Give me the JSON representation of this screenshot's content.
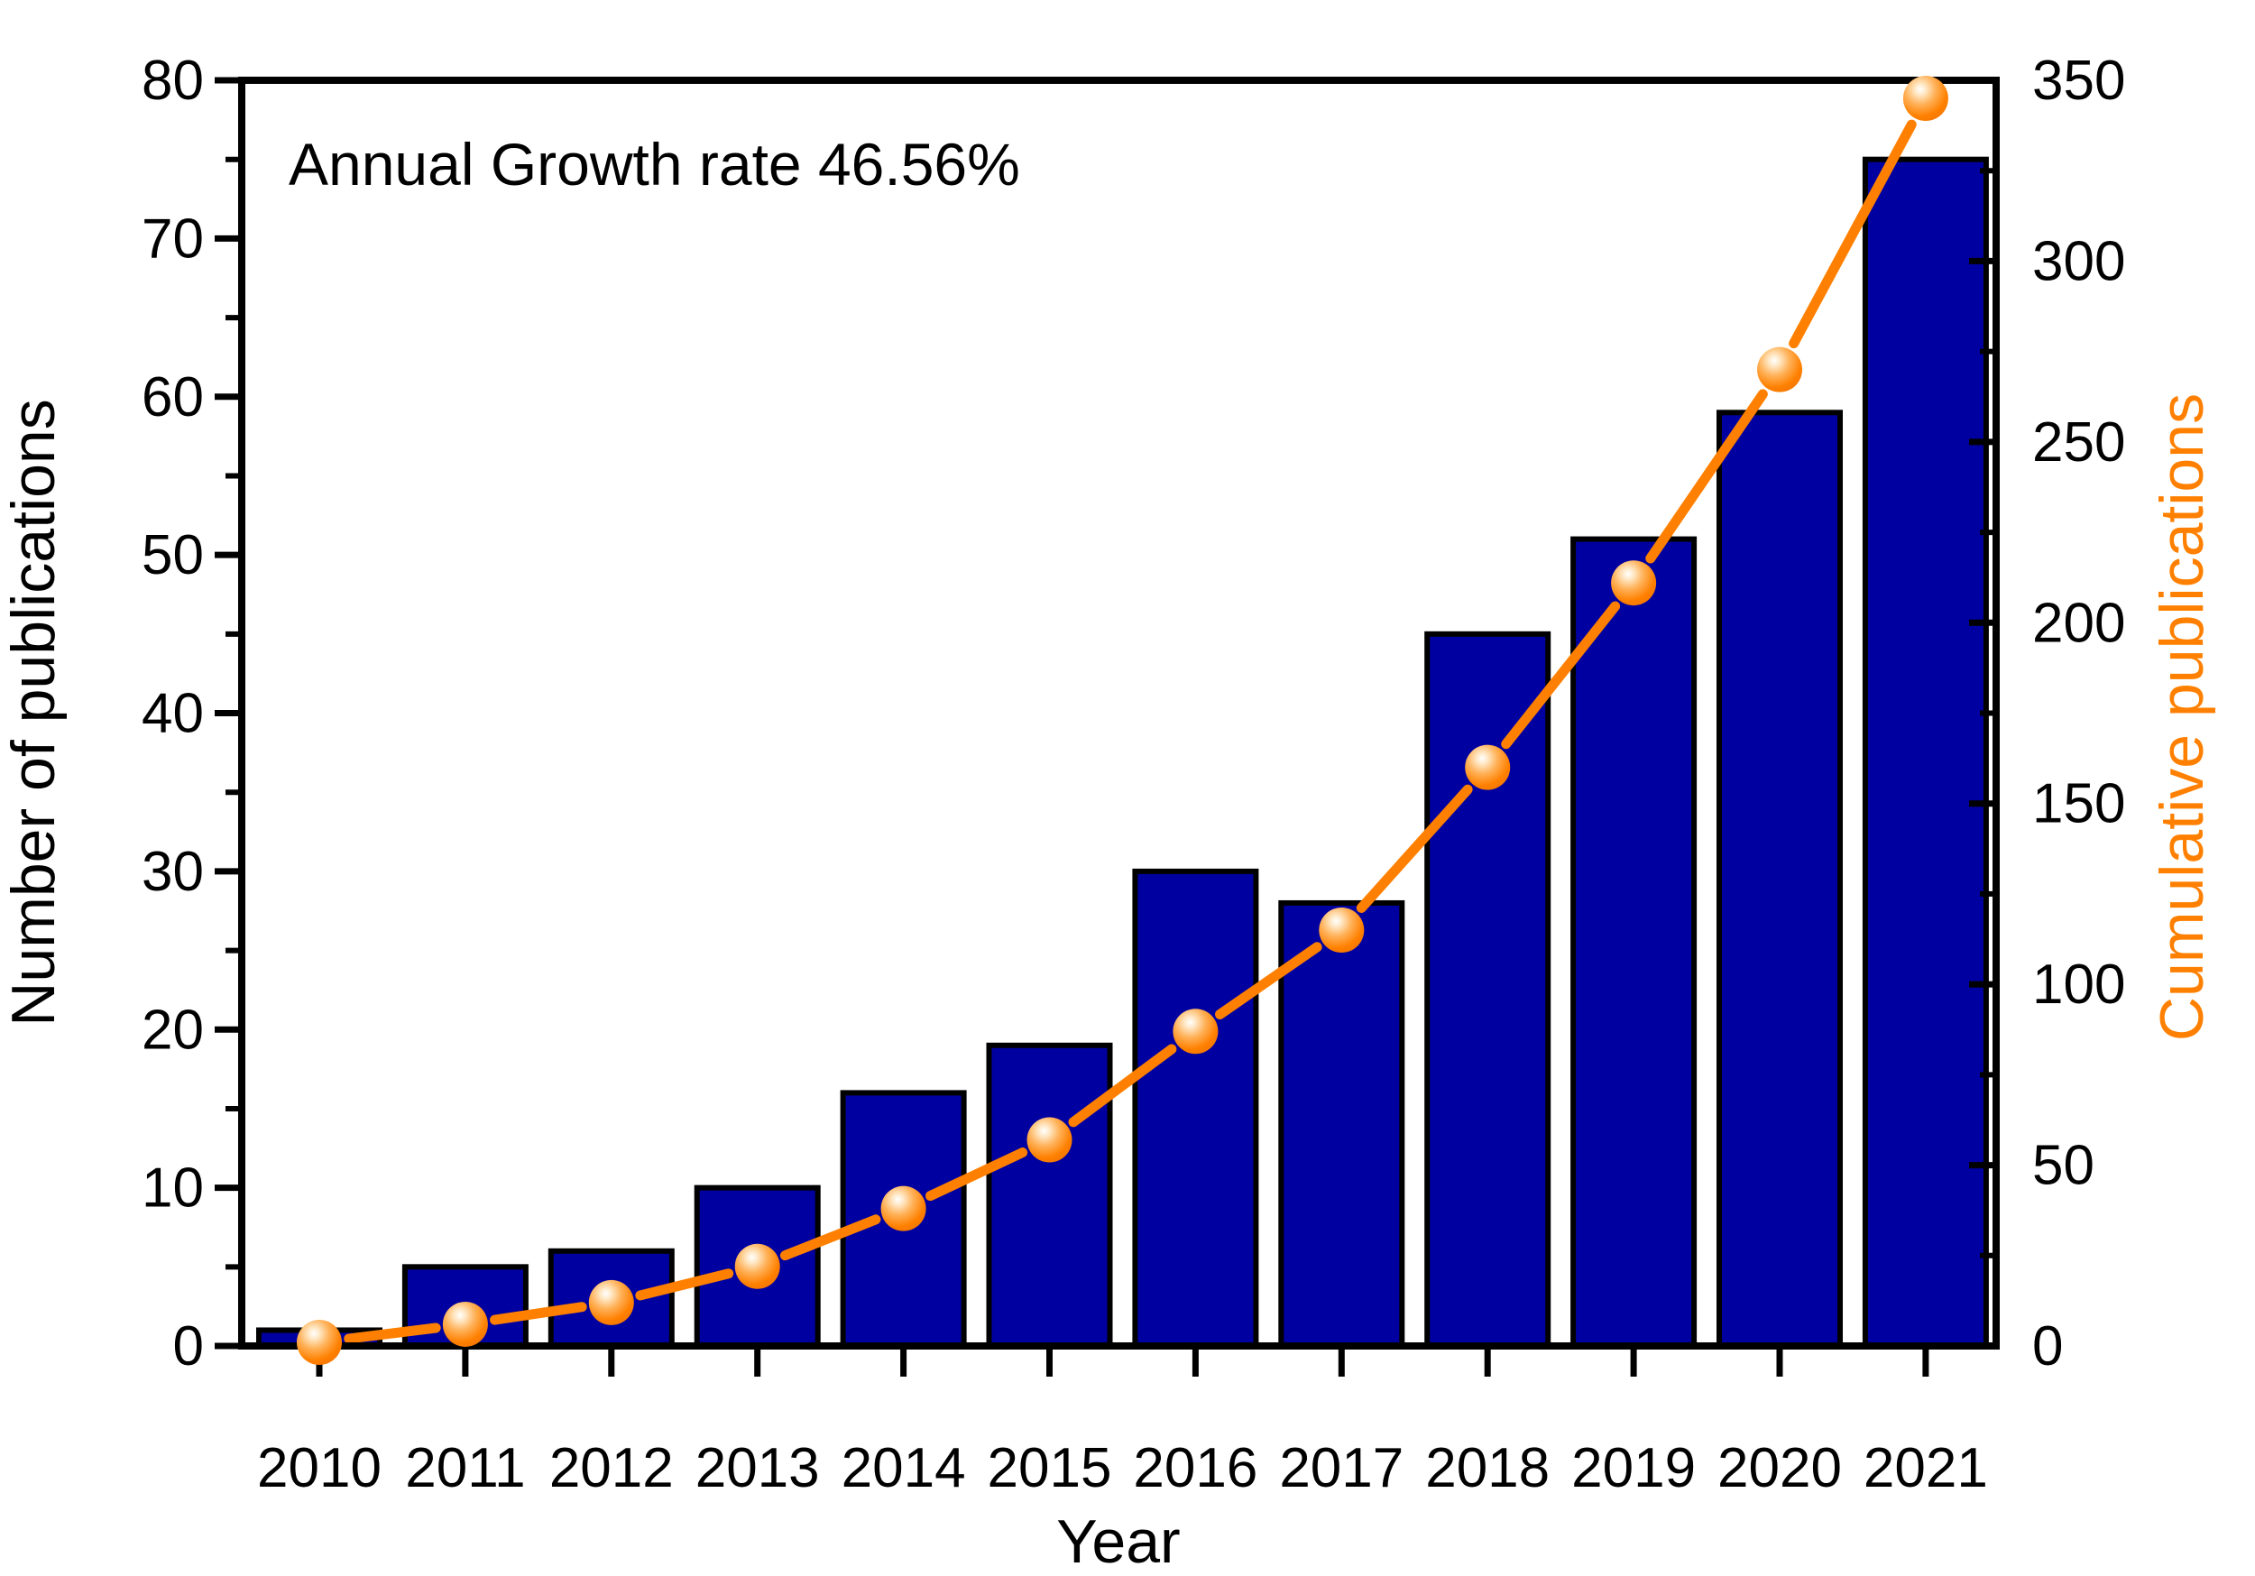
{
  "chart_data": {
    "type": "bar",
    "title_annotation": "Annual Growth rate 46.56%",
    "categories": [
      "2010",
      "2011",
      "2012",
      "2013",
      "2014",
      "2015",
      "2016",
      "2017",
      "2018",
      "2019",
      "2020",
      "2021"
    ],
    "series": [
      {
        "name": "Number of publications",
        "type": "bar",
        "yaxis": "left",
        "values": [
          1,
          5,
          6,
          10,
          16,
          19,
          30,
          28,
          45,
          51,
          59,
          75
        ]
      },
      {
        "name": "Cumulative publications",
        "type": "line+marker",
        "yaxis": "right",
        "values": [
          1,
          6,
          12,
          22,
          38,
          57,
          87,
          115,
          160,
          211,
          270,
          345
        ]
      }
    ],
    "xlabel": "Year",
    "left_axis": {
      "label": "Number of publications",
      "min": 0,
      "max": 80,
      "tick_step": 10,
      "minor_tick_step": 5,
      "tick_labels": [
        "0",
        "10",
        "20",
        "30",
        "40",
        "50",
        "60",
        "70",
        "80"
      ],
      "text_color": "#000000"
    },
    "right_axis": {
      "label": "Cumulative publications",
      "min": 0,
      "max": 350,
      "tick_step": 50,
      "minor_tick_step": 25,
      "tick_labels": [
        "0",
        "50",
        "100",
        "150",
        "200",
        "250",
        "300",
        "350"
      ],
      "text_color": "#FF8000"
    },
    "grid": false,
    "legend": "none",
    "colors": {
      "background": "#FFFFFF",
      "frame": "#000000",
      "bar_fill": "#0000A0",
      "bar_stroke": "#000000",
      "line": "#FF8000",
      "marker_highlight": "#FFFFFF",
      "marker_mid": "#FFB25A",
      "marker_main": "#FF8000",
      "marker_rim": "#F07400"
    }
  }
}
